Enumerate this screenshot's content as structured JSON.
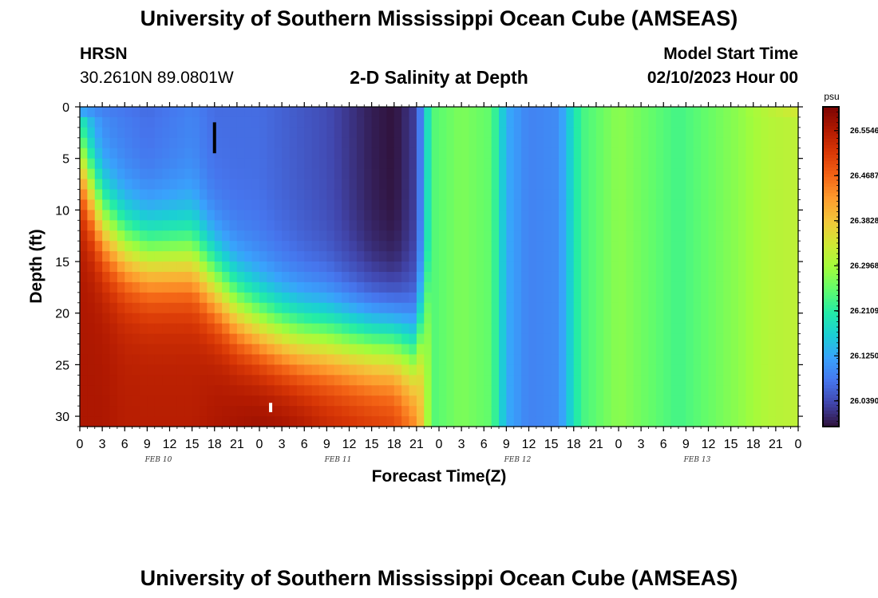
{
  "header": {
    "title_top": "University of Southern Mississippi Ocean Cube (AMSEAS)",
    "title_bottom": "University of Southern Mississippi Ocean Cube (AMSEAS)",
    "station": "HRSN",
    "coordinates": "30.2610N  89.0801W",
    "subtitle": "2-D Salinity at Depth",
    "model_start_label": "Model Start Time",
    "model_start_value": "02/10/2023 Hour 00"
  },
  "chart_data": {
    "type": "heatmap",
    "title": "2-D Salinity at Depth",
    "xlabel": "Forecast Time(Z)",
    "ylabel": "Depth (ft)",
    "x_tick_labels": [
      "0",
      "3",
      "6",
      "9",
      "12",
      "15",
      "18",
      "21",
      "0",
      "3",
      "6",
      "9",
      "12",
      "15",
      "18",
      "21",
      "0",
      "3",
      "6",
      "9",
      "12",
      "15",
      "18",
      "21",
      "0",
      "3",
      "6",
      "9",
      "12",
      "15",
      "18",
      "21",
      "0"
    ],
    "x_range_hours": [
      0,
      96
    ],
    "date_labels": [
      {
        "label": "FEB 10",
        "hour": 10.5
      },
      {
        "label": "FEB 11",
        "hour": 34.5
      },
      {
        "label": "FEB 12",
        "hour": 58.5
      },
      {
        "label": "FEB 13",
        "hour": 82.5
      }
    ],
    "y_ticks": [
      0,
      5,
      10,
      15,
      20,
      25,
      30
    ],
    "y_range": [
      0,
      31
    ],
    "y_inverted": true,
    "colorbar": {
      "unit": "psu",
      "tick_labels": [
        "26.5546",
        "26.4687",
        "26.3828",
        "26.2968",
        "26.2109",
        "26.1250",
        "26.0390"
      ],
      "tick_values": [
        26.5546,
        26.4687,
        26.3828,
        26.2968,
        26.2109,
        26.125,
        26.039
      ],
      "min": 25.99,
      "max": 26.6,
      "colormap": [
        "#30123b",
        "#4145ab",
        "#4675ed",
        "#39a2fc",
        "#1bcfd4",
        "#24eca6",
        "#61fc6c",
        "#a4fc3b",
        "#d1e834",
        "#f3c63a",
        "#fe9b2d",
        "#f36315",
        "#d93806",
        "#b11901",
        "#7a0403"
      ]
    },
    "markers": [
      {
        "hour": 18,
        "depth_from": 1.5,
        "depth_to": 4.5,
        "color": "#000000"
      },
      {
        "hour": 25.5,
        "depth_from": 28.7,
        "depth_to": 29.6,
        "color": "#ffffff"
      }
    ],
    "series": [
      {
        "hour": 0,
        "surface": 26.13,
        "layer1": 26.13,
        "layer2": 26.56,
        "h1": 5,
        "h2": 28
      },
      {
        "hour": 3,
        "surface": 26.09,
        "layer1": 26.09,
        "layer2": 26.56,
        "h1": 11,
        "h2": 28
      },
      {
        "hour": 6,
        "surface": 26.08,
        "layer1": 26.08,
        "layer2": 26.55,
        "h1": 13.5,
        "h2": 28
      },
      {
        "hour": 9,
        "surface": 26.07,
        "layer1": 26.07,
        "layer2": 26.55,
        "h1": 14.5,
        "h2": 28
      },
      {
        "hour": 12,
        "surface": 26.08,
        "layer1": 26.08,
        "layer2": 26.55,
        "h1": 14.5,
        "h2": 28
      },
      {
        "hour": 15,
        "surface": 26.09,
        "layer1": 26.09,
        "layer2": 26.55,
        "h1": 14.5,
        "h2": 28
      },
      {
        "hour": 18,
        "surface": 26.07,
        "layer1": 26.07,
        "layer2": 26.56,
        "h1": 17,
        "h2": 28
      },
      {
        "hour": 21,
        "surface": 26.07,
        "layer1": 26.07,
        "layer2": 26.57,
        "h1": 19.5,
        "h2": 28
      },
      {
        "hour": 24,
        "surface": 26.07,
        "layer1": 26.07,
        "layer2": 26.58,
        "h1": 21,
        "h2": 28
      },
      {
        "hour": 27,
        "surface": 26.06,
        "layer1": 26.06,
        "layer2": 26.58,
        "h1": 22,
        "h2": 28
      },
      {
        "hour": 30,
        "surface": 26.05,
        "layer1": 26.05,
        "layer2": 26.57,
        "h1": 22.5,
        "h2": 28
      },
      {
        "hour": 33,
        "surface": 26.04,
        "layer1": 26.04,
        "layer2": 26.55,
        "h1": 22.5,
        "h2": 28
      },
      {
        "hour": 36,
        "surface": 26.02,
        "layer1": 26.02,
        "layer2": 26.54,
        "h1": 22.8,
        "h2": 28
      },
      {
        "hour": 39,
        "surface": 26.0,
        "layer1": 26.0,
        "layer2": 26.53,
        "h1": 23,
        "h2": 28
      },
      {
        "hour": 42,
        "surface": 25.99,
        "layer1": 25.99,
        "layer2": 26.52,
        "h1": 23,
        "h2": 28
      },
      {
        "hour": 45,
        "surface": 26.03,
        "layer1": 26.03,
        "layer2": 26.46,
        "h1": 24,
        "h2": 28
      },
      {
        "hour": 47,
        "surface": 26.24,
        "layer1": 26.24,
        "layer2": 26.24,
        "h1": 16,
        "h2": 28
      },
      {
        "hour": 51,
        "surface": 26.27,
        "layer1": 26.27,
        "layer2": 26.27,
        "h1": 16,
        "h2": 28
      },
      {
        "hour": 55,
        "surface": 26.25,
        "layer1": 26.25,
        "layer2": 26.25,
        "h1": 16,
        "h2": 28
      },
      {
        "hour": 57,
        "surface": 26.13,
        "layer1": 26.13,
        "layer2": 26.13,
        "h1": 16,
        "h2": 28
      },
      {
        "hour": 60,
        "surface": 26.09,
        "layer1": 26.09,
        "layer2": 26.09,
        "h1": 16,
        "h2": 28
      },
      {
        "hour": 64,
        "surface": 26.1,
        "layer1": 26.1,
        "layer2": 26.1,
        "h1": 16,
        "h2": 28
      },
      {
        "hour": 67,
        "surface": 26.23,
        "layer1": 26.23,
        "layer2": 26.23,
        "h1": 16,
        "h2": 28
      },
      {
        "hour": 72,
        "surface": 26.28,
        "layer1": 26.28,
        "layer2": 26.28,
        "h1": 16,
        "h2": 28
      },
      {
        "hour": 80,
        "surface": 26.23,
        "layer1": 26.23,
        "layer2": 26.23,
        "h1": 16,
        "h2": 28
      },
      {
        "hour": 88,
        "surface": 26.28,
        "layer1": 26.28,
        "layer2": 26.28,
        "h1": 16,
        "h2": 28
      },
      {
        "hour": 92,
        "surface": 26.32,
        "layer1": 26.31,
        "layer2": 26.31,
        "h1": 16,
        "h2": 28
      },
      {
        "hour": 96,
        "surface": 26.36,
        "layer1": 26.32,
        "layer2": 26.32,
        "h1": 16,
        "h2": 28
      }
    ]
  }
}
